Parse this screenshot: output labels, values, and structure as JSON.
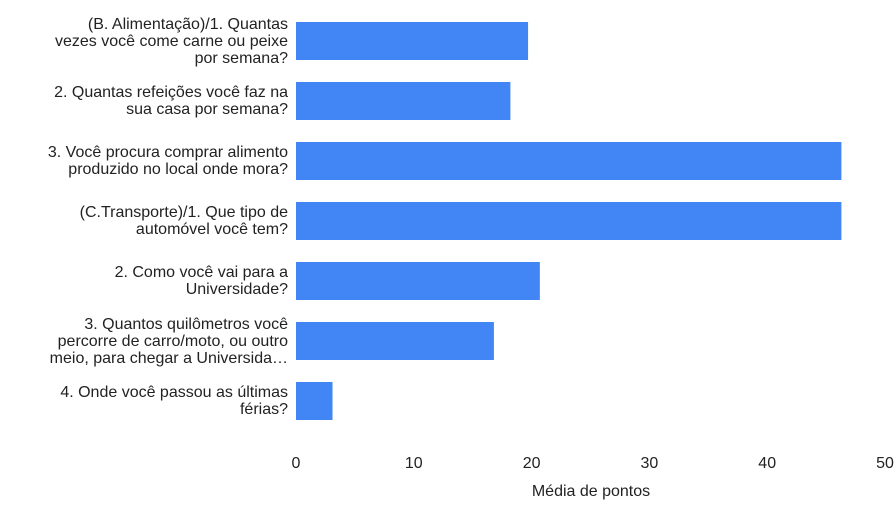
{
  "chart_data": {
    "type": "bar",
    "orientation": "horizontal",
    "categories": [
      [
        "(B. Alimentação)/1. Quantas",
        "vezes você come carne ou peixe",
        "por semana?"
      ],
      [
        "2. Quantas refeições você faz na",
        "sua casa por semana?"
      ],
      [
        "3. Você procura comprar alimento",
        "produzido no local onde mora?"
      ],
      [
        "(C.Transporte)/1. Que tipo de",
        "automóvel você tem?"
      ],
      [
        "2. Como você vai para a",
        "Universidade?"
      ],
      [
        "3. Quantos quilômetros você",
        "percorre de carro/moto, ou outro",
        "meio, para chegar a Universida…"
      ],
      [
        "4. Onde você passou as últimas",
        "férias?"
      ]
    ],
    "values": [
      19.7,
      18.2,
      46.3,
      46.3,
      20.7,
      16.8,
      3.1
    ],
    "xlim": [
      0,
      50
    ],
    "xticks": [
      "0",
      "10",
      "20",
      "30",
      "40",
      "50"
    ],
    "xlabel": "Média de pontos",
    "ylabel": "",
    "title": "",
    "grid": false,
    "bar_color": "#4285f4"
  }
}
